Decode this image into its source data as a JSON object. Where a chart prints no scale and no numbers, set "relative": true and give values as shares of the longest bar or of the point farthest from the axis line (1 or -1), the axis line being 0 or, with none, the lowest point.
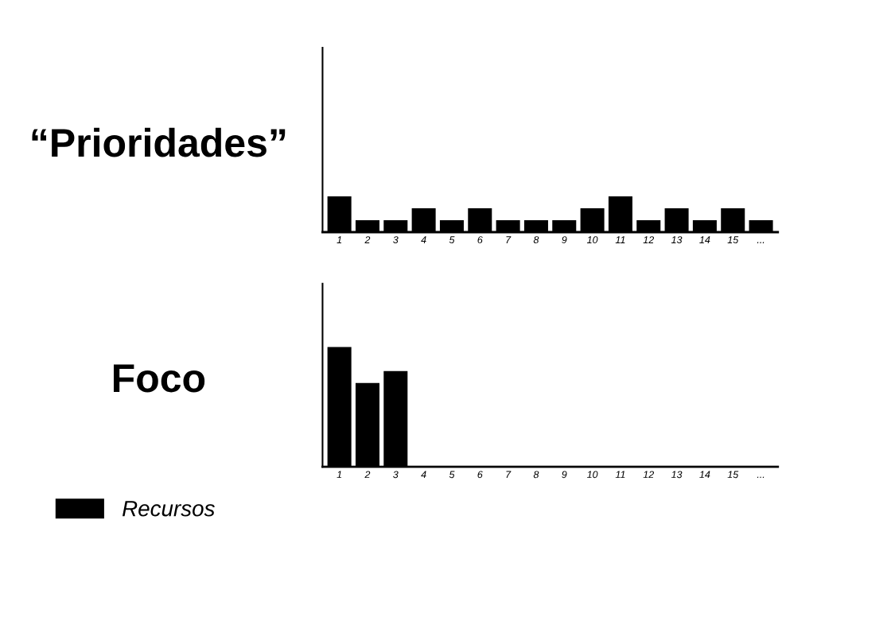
{
  "chart_data": [
    {
      "type": "bar",
      "title": "“Prioridades”",
      "relative": true,
      "tick_labels": "x",
      "grid": false,
      "categories": [
        "1",
        "2",
        "3",
        "4",
        "5",
        "6",
        "7",
        "8",
        "9",
        "10",
        "11",
        "12",
        "13",
        "14",
        "15",
        "..."
      ],
      "series": [
        {
          "color": "#000000",
          "values": [
            1,
            0.333,
            0.333,
            0.667,
            0.333,
            0.667,
            0.333,
            0.333,
            0.333,
            0.667,
            1,
            0.333,
            0.667,
            0.333,
            0.667,
            0.333
          ]
        }
      ]
    },
    {
      "type": "bar",
      "title": "Foco",
      "relative": true,
      "tick_labels": "x",
      "grid": false,
      "legend": "bottom left",
      "categories": [
        "1",
        "2",
        "3",
        "4",
        "5",
        "6",
        "7",
        "8",
        "9",
        "10",
        "11",
        "12",
        "13",
        "14",
        "15",
        "..."
      ],
      "series": [
        {
          "name": "Recursos",
          "color": "#000000",
          "values": [
            1,
            0.7,
            0.8,
            0,
            0,
            0,
            0,
            0,
            0,
            0,
            0,
            0,
            0,
            0,
            0,
            0
          ]
        }
      ]
    }
  ]
}
